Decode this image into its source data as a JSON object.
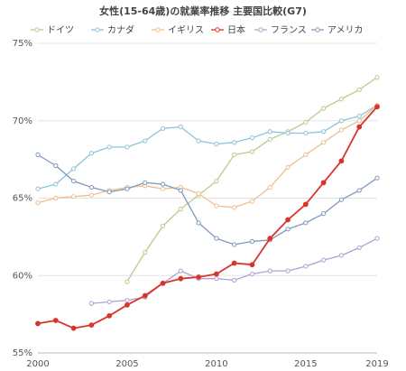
{
  "chart_data": {
    "type": "line",
    "title": "女性(15-64歳)の就業率推移  主要国比較(G7)",
    "x": [
      2000,
      2001,
      2002,
      2003,
      2004,
      2005,
      2006,
      2007,
      2008,
      2009,
      2010,
      2011,
      2012,
      2013,
      2014,
      2015,
      2016,
      2017,
      2018,
      2019
    ],
    "xticks": [
      "2000",
      "2005",
      "2010",
      "2015",
      "2019"
    ],
    "yticks": [
      "55%",
      "60%",
      "65%",
      "70%",
      "75%"
    ],
    "xlim": [
      2000,
      2019
    ],
    "ylim": [
      55,
      75
    ],
    "grid": "horizontal",
    "legend": "top",
    "series": [
      {
        "name": "ドイツ",
        "color": "#b7cd8a",
        "values": [
          null,
          null,
          null,
          null,
          null,
          59.6,
          61.5,
          63.2,
          64.3,
          65.2,
          66.1,
          67.8,
          68.0,
          68.8,
          69.3,
          69.9,
          70.8,
          71.4,
          72.0,
          72.8
        ]
      },
      {
        "name": "カナダ",
        "color": "#8ec3dc",
        "values": [
          65.6,
          65.9,
          66.9,
          67.9,
          68.3,
          68.3,
          68.7,
          69.5,
          69.6,
          68.7,
          68.5,
          68.6,
          68.9,
          69.3,
          69.2,
          69.2,
          69.3,
          70.0,
          70.3,
          71.0
        ]
      },
      {
        "name": "イギリス",
        "color": "#f0be8c",
        "values": [
          64.7,
          65.0,
          65.1,
          65.2,
          65.5,
          65.7,
          65.8,
          65.6,
          65.7,
          65.3,
          64.5,
          64.4,
          64.8,
          65.7,
          67.0,
          67.8,
          68.6,
          69.4,
          70.0,
          71.0
        ]
      },
      {
        "name": "日本",
        "color": "#d9342c",
        "values": [
          56.9,
          57.1,
          56.6,
          56.8,
          57.4,
          58.1,
          58.7,
          59.5,
          59.8,
          59.9,
          60.1,
          60.8,
          60.7,
          62.4,
          63.6,
          64.6,
          66.0,
          67.4,
          69.6,
          70.9
        ]
      },
      {
        "name": "フランス",
        "color": "#b2a0d2",
        "values": [
          null,
          null,
          null,
          58.2,
          58.3,
          58.4,
          58.6,
          59.5,
          60.3,
          59.8,
          59.8,
          59.7,
          60.1,
          60.3,
          60.3,
          60.6,
          61.0,
          61.3,
          61.8,
          62.4
        ]
      },
      {
        "name": "アメリカ",
        "color": "#7f97bd",
        "values": [
          67.8,
          67.1,
          66.1,
          65.7,
          65.4,
          65.6,
          66.0,
          65.9,
          65.5,
          63.4,
          62.4,
          62.0,
          62.2,
          62.3,
          63.0,
          63.4,
          64.0,
          64.9,
          65.5,
          66.3
        ]
      }
    ]
  }
}
